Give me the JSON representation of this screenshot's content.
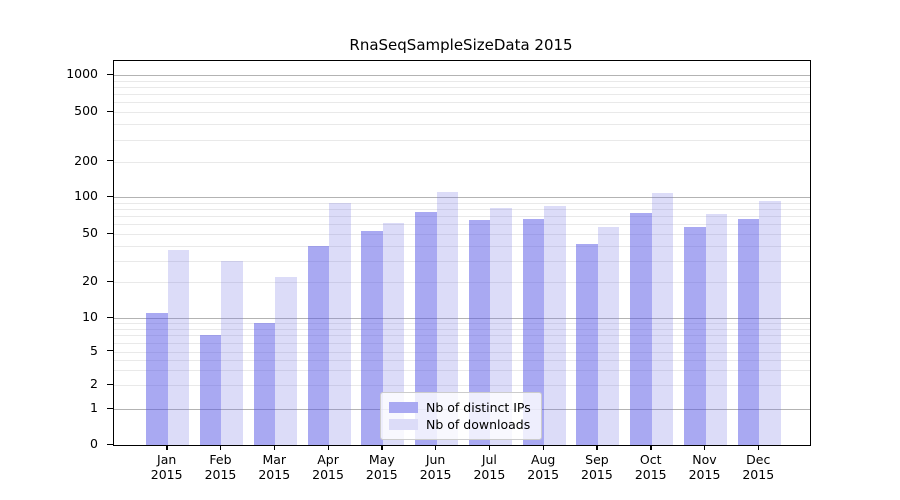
{
  "title": "RnaSeqSampleSizeData 2015",
  "chart_data": {
    "type": "bar",
    "title": "RnaSeqSampleSizeData 2015",
    "categories": [
      "Jan 2015",
      "Feb 2015",
      "Mar 2015",
      "Apr 2015",
      "May 2015",
      "Jun 2015",
      "Jul 2015",
      "Aug 2015",
      "Sep 2015",
      "Oct 2015",
      "Nov 2015",
      "Dec 2015"
    ],
    "series": [
      {
        "name": "Nb of distinct IPs",
        "legend_color": "#a9a9f2",
        "fill": "rgba(83,83,229,0.5)",
        "values": [
          11,
          7,
          9,
          40,
          53,
          76,
          65,
          66,
          41,
          74,
          57,
          66
        ]
      },
      {
        "name": "Nb of downloads",
        "legend_color": "#dcdcf8",
        "fill": "rgba(115,115,227,0.25)",
        "values": [
          37,
          30,
          22,
          89,
          62,
          110,
          82,
          84,
          57,
          109,
          73,
          92
        ]
      }
    ],
    "xlabel": "",
    "ylabel": "",
    "yscale": "symlog",
    "ylim": [
      0,
      1200
    ],
    "yticks": [
      0,
      1,
      2,
      5,
      10,
      20,
      50,
      100,
      200,
      500,
      1000
    ],
    "major_grid_values": [
      1,
      10,
      100,
      1000
    ],
    "minor_grid_values": [
      2,
      3,
      4,
      6,
      7,
      8,
      9,
      20,
      30,
      40,
      60,
      70,
      80,
      90,
      200,
      300,
      400,
      600,
      700,
      800,
      900,
      500,
      50,
      5
    ],
    "grid": true,
    "legend_position": "lower-center"
  },
  "colors": {
    "background": "#ffffff",
    "spine": "#000000",
    "text": "#000000",
    "major_grid": "#b3b3b3",
    "minor_grid": "#e9e9e9",
    "legend_border": "#cccccc"
  }
}
